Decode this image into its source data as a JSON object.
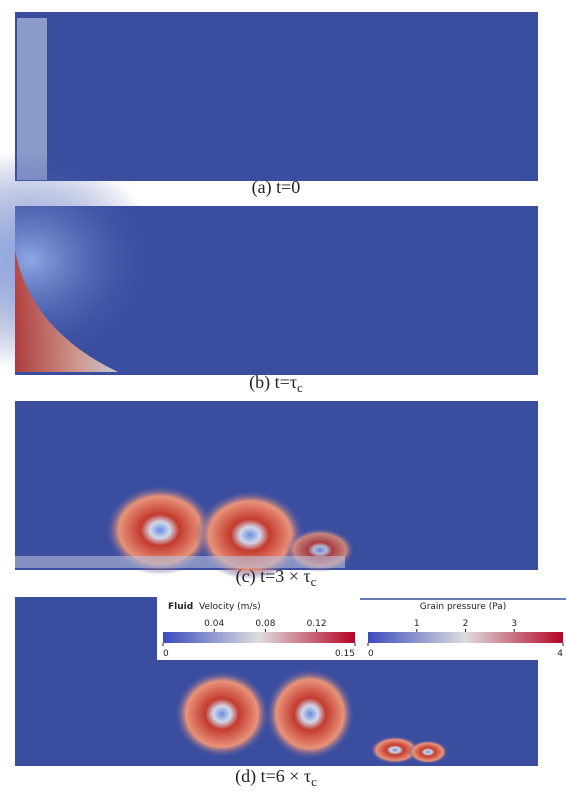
{
  "panels": [
    {
      "caption": "(a) t=0"
    },
    {
      "caption": "(b) t=τ",
      "subscript": "c"
    },
    {
      "caption": "(c) t=3 × τ",
      "subscript": "c"
    },
    {
      "caption": "(d) t=6 × τ",
      "subscript": "c"
    }
  ],
  "colorbars": [
    {
      "title_bold": "Fluid",
      "title": "Velocity (m/s)",
      "min": 0,
      "max": 0.15,
      "ticks": [
        0.04,
        0.08,
        0.12
      ]
    },
    {
      "title": "Grain pressure (Pa)",
      "min": 0,
      "max": 4,
      "ticks": [
        1,
        2,
        3
      ]
    }
  ]
}
